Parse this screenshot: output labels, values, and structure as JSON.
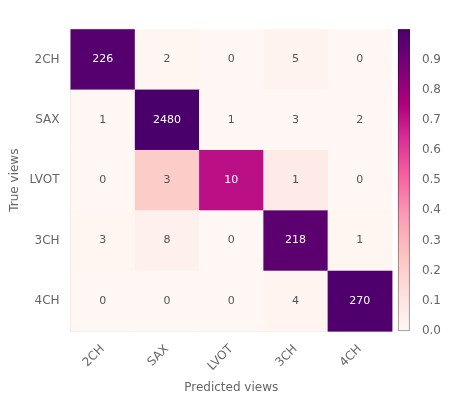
{
  "chart_data": {
    "type": "heatmap",
    "xlabel": "Predicted views",
    "ylabel": "True views",
    "categories": [
      "2CH",
      "SAX",
      "LVOT",
      "3CH",
      "4CH"
    ],
    "values": [
      [
        226,
        2,
        0,
        5,
        0
      ],
      [
        1,
        2480,
        1,
        3,
        2
      ],
      [
        0,
        3,
        10,
        1,
        0
      ],
      [
        3,
        8,
        0,
        218,
        1
      ],
      [
        0,
        0,
        0,
        4,
        270
      ]
    ],
    "cells": [
      [
        0.9699570815450644,
        0.008583690987124463,
        0,
        0.02145922746781116,
        0
      ],
      [
        0.00040209087253719,
        0.9971853638922397,
        0.00040209087253719,
        0.00120627261761158,
        0.00080418174507438
      ],
      [
        0,
        0.21428571428571427,
        0.7142857142857143,
        0.07142857142857142,
        0
      ],
      [
        0.013043478260869565,
        0.034782608695652174,
        0,
        0.9478260869565217,
        0.004347826086956522
      ],
      [
        0,
        0,
        0,
        0.014598540145985401,
        0.9854014598540146
      ]
    ],
    "colorbar_range": [
      0.0,
      1.0
    ],
    "colorbar_ticks": [
      {
        "value": 0,
        "label": "0.0"
      },
      0.1,
      0.2,
      0.3,
      0.4,
      0.5,
      0.6,
      0.7,
      0.8,
      0.9
    ],
    "data_labels": true,
    "grid": false
  }
}
